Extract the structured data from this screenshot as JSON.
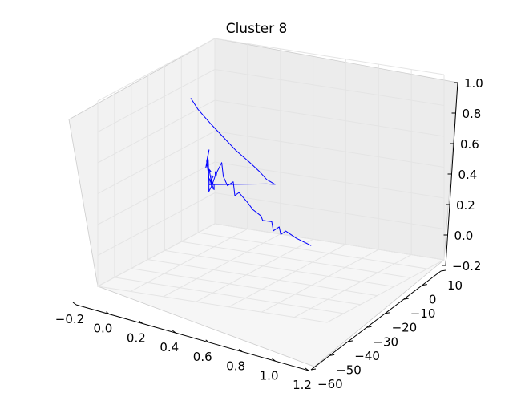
{
  "chart_data": {
    "type": "line",
    "title": "Cluster 8",
    "projection": "3d",
    "xlabel": "",
    "ylabel": "",
    "zlabel": "",
    "x_ticks": [
      -0.2,
      0.0,
      0.2,
      0.4,
      0.6,
      0.8,
      1.0,
      1.2
    ],
    "x_tick_labels": [
      "−0.2",
      "0.0",
      "0.2",
      "0.4",
      "0.6",
      "0.8",
      "1.0",
      "1.2"
    ],
    "y_ticks": [
      -60,
      -50,
      -40,
      -30,
      -20,
      -10,
      0,
      10
    ],
    "y_tick_labels": [
      "−60",
      "−50",
      "−40",
      "−30",
      "−20",
      "−10",
      "0",
      "10"
    ],
    "z_ticks": [
      -0.2,
      0.0,
      0.2,
      0.4,
      0.6,
      0.8,
      1.0
    ],
    "z_tick_labels": [
      "−0.2",
      "0.0",
      "0.2",
      "0.4",
      "0.6",
      "0.8",
      "1.0"
    ],
    "xlim": [
      -0.2,
      1.2
    ],
    "ylim": [
      -60,
      10
    ],
    "zlim": [
      -0.2,
      1.0
    ],
    "grid": true,
    "series_color": "#0000ff",
    "series": [
      {
        "points": [
          [
            0.45,
            -36,
            0.0
          ],
          [
            0.47,
            -32,
            0.04
          ],
          [
            0.48,
            -29,
            0.08
          ],
          [
            0.5,
            -28,
            0.06
          ],
          [
            0.48,
            -27,
            0.1
          ],
          [
            0.51,
            -26,
            0.08
          ],
          [
            0.49,
            -25,
            0.13
          ],
          [
            0.52,
            -23,
            0.14
          ],
          [
            0.5,
            -22,
            0.16
          ],
          [
            0.52,
            -20,
            0.2
          ],
          [
            0.51,
            -18,
            0.24
          ],
          [
            0.53,
            -16,
            0.3
          ],
          [
            0.54,
            -15,
            0.28
          ],
          [
            0.52,
            -14,
            0.36
          ],
          [
            0.55,
            -13,
            0.34
          ],
          [
            0.56,
            -12,
            0.4
          ],
          [
            0.54,
            -11,
            0.48
          ],
          [
            0.56,
            -10,
            0.42
          ],
          [
            0.53,
            -9,
            0.38
          ],
          [
            0.5,
            -8,
            0.4
          ],
          [
            0.46,
            -7,
            0.36
          ],
          [
            0.42,
            -5,
            0.28
          ],
          [
            0.38,
            -3,
            0.22
          ],
          [
            0.34,
            -2,
            0.26
          ],
          [
            0.31,
            -1,
            0.4
          ],
          [
            0.3,
            0,
            0.34
          ],
          [
            0.3,
            -1,
            0.46
          ],
          [
            0.29,
            0,
            0.38
          ],
          [
            0.27,
            0,
            0.3
          ],
          [
            0.24,
            0,
            0.3
          ],
          [
            0.26,
            0,
            0.32
          ],
          [
            0.23,
            0,
            0.22
          ],
          [
            0.25,
            0,
            0.25
          ],
          [
            0.22,
            0,
            0.18
          ],
          [
            0.24,
            0,
            0.22
          ],
          [
            0.22,
            0,
            0.2
          ],
          [
            0.23,
            0,
            0.27
          ],
          [
            0.21,
            0,
            0.26
          ],
          [
            0.24,
            0,
            0.24
          ],
          [
            0.2,
            0,
            0.2
          ],
          [
            0.2,
            0,
            0.17
          ],
          [
            0.26,
            0,
            0.26
          ],
          [
            0.26,
            0,
            0.22
          ],
          [
            0.36,
            -20,
            0.32
          ],
          [
            0.45,
            -25,
            0.36
          ],
          [
            0.55,
            -25,
            0.42
          ],
          [
            0.64,
            -25,
            0.5
          ],
          [
            0.72,
            -24,
            0.58
          ],
          [
            0.8,
            -22,
            0.67
          ],
          [
            0.86,
            -20,
            0.76
          ],
          [
            0.91,
            -17,
            0.86
          ],
          [
            0.94,
            -14,
            0.95
          ],
          [
            0.95,
            -12,
            1.02
          ]
        ]
      }
    ]
  }
}
